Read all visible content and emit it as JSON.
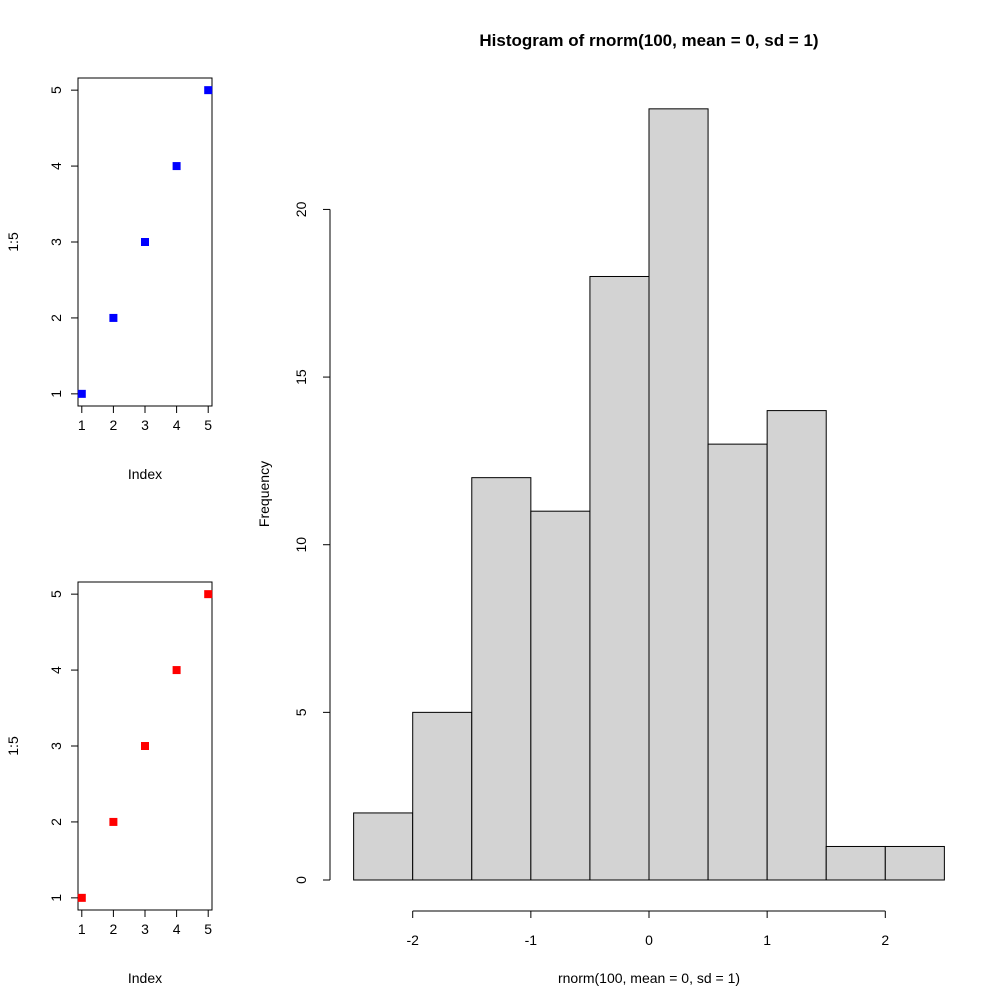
{
  "chart_data": [
    {
      "type": "scatter",
      "title": "",
      "xlabel": "Index",
      "ylabel": "1:5",
      "x": [
        1,
        2,
        3,
        4,
        5
      ],
      "y": [
        1,
        2,
        3,
        4,
        5
      ],
      "xticks": [
        1,
        2,
        3,
        4,
        5
      ],
      "yticks": [
        1,
        2,
        3,
        4,
        5
      ],
      "xlim": [
        0.88,
        5.12
      ],
      "ylim": [
        0.84,
        5.16
      ],
      "marker": "square",
      "color": "#0000ff",
      "grid": false
    },
    {
      "type": "scatter",
      "title": "",
      "xlabel": "Index",
      "ylabel": "1:5",
      "x": [
        1,
        2,
        3,
        4,
        5
      ],
      "y": [
        1,
        2,
        3,
        4,
        5
      ],
      "xticks": [
        1,
        2,
        3,
        4,
        5
      ],
      "yticks": [
        1,
        2,
        3,
        4,
        5
      ],
      "xlim": [
        0.88,
        5.12
      ],
      "ylim": [
        0.84,
        5.16
      ],
      "marker": "square",
      "color": "#ff0000",
      "grid": false
    },
    {
      "type": "bar",
      "subtype": "histogram",
      "title": "Histogram of rnorm(100, mean = 0, sd = 1)",
      "xlabel": "rnorm(100, mean = 0, sd = 1)",
      "ylabel": "Frequency",
      "bin_edges": [
        -2.5,
        -2,
        -1.5,
        -1,
        -0.5,
        0,
        0.5,
        1,
        1.5,
        2,
        2.5
      ],
      "values": [
        2,
        5,
        12,
        11,
        18,
        23,
        13,
        14,
        1,
        1
      ],
      "xticks": [
        -2,
        -1,
        0,
        1,
        2
      ],
      "yticks": [
        0,
        5,
        10,
        15,
        20
      ],
      "xlim": [
        -2.7,
        2.7
      ],
      "ylim": [
        0,
        23.92
      ],
      "fill": "#d3d3d3",
      "grid": false
    }
  ]
}
